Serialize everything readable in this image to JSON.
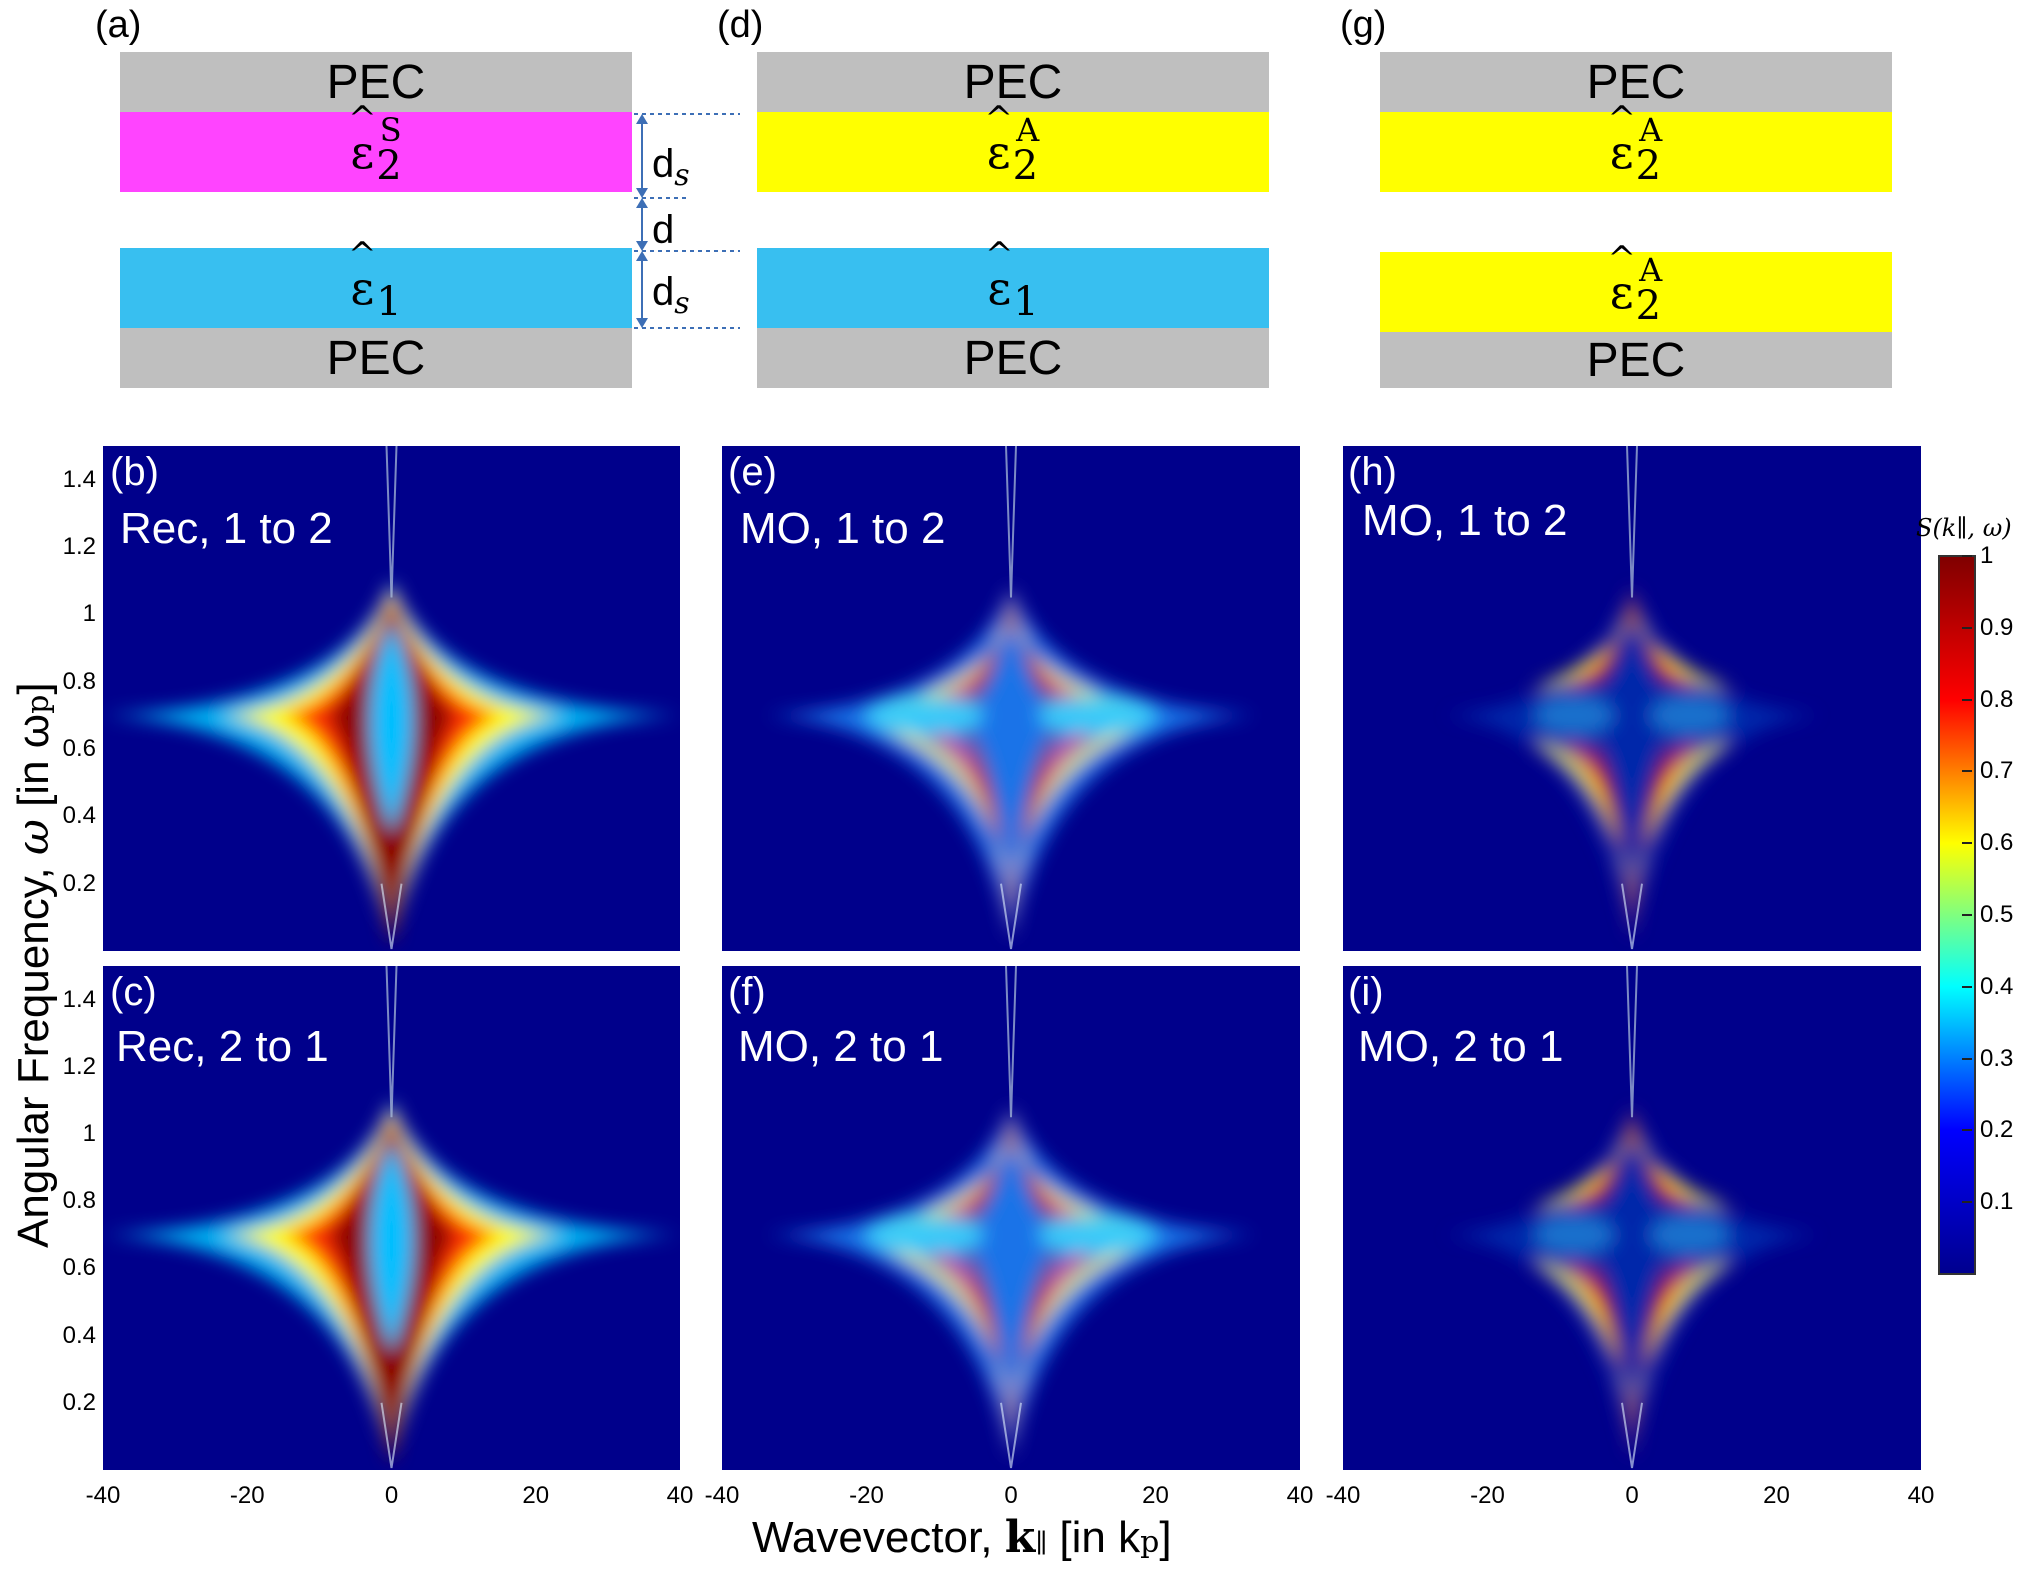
{
  "schematics": [
    {
      "id": "a",
      "label": "(a)",
      "top": "PEC",
      "bottom": "PEC",
      "upper_eps": "ε",
      "upper_sub": "2",
      "upper_sup": "S",
      "lower_eps": "ε",
      "lower_sub": "1",
      "upper_color": "#ff44ff",
      "lower_color": "#38bff0"
    },
    {
      "id": "d",
      "label": "(d)",
      "top": "PEC",
      "bottom": "PEC",
      "upper_eps": "ε",
      "upper_sub": "2",
      "upper_sup": "A",
      "lower_eps": "ε",
      "lower_sub": "1",
      "upper_color": "#ffff00",
      "lower_color": "#38bff0"
    },
    {
      "id": "g",
      "label": "(g)",
      "top": "PEC",
      "bottom": "PEC",
      "upper_eps": "ε",
      "upper_sub": "2",
      "upper_sup": "A",
      "lower_eps": "ε",
      "lower_sub": "2",
      "lower_sup": "A",
      "upper_color": "#ffff00",
      "lower_color": "#ffff00"
    }
  ],
  "dimensions": {
    "ds_top": "d",
    "ds_top_sub": "s",
    "gap": "d",
    "ds_bottom": "d",
    "ds_bottom_sub": "s"
  },
  "panels": [
    {
      "tag": "(b)",
      "title": "Rec, 1 to 2"
    },
    {
      "tag": "(e)",
      "title": "MO, 1 to 2"
    },
    {
      "tag": "(h)",
      "title": "MO, 1 to 2"
    },
    {
      "tag": "(c)",
      "title": "Rec, 2 to 1"
    },
    {
      "tag": "(f)",
      "title": "MO, 2 to 1"
    },
    {
      "tag": "(i)",
      "title": "MO, 2 to 1"
    }
  ],
  "axes": {
    "ylabel_prefix": "Angular Frequency, ",
    "ylabel_sym": "ω",
    "ylabel_unit": " [in ω",
    "ylabel_unit_sub": "p",
    "ylabel_close": "]",
    "xlabel_prefix": "Wavevector, ",
    "xlabel_sym": "k",
    "xlabel_sym_sub": "∥",
    "xlabel_unit": " [in k",
    "xlabel_unit_sub": "p",
    "xlabel_close": "]",
    "yticks": [
      "1.4",
      "1.2",
      "1",
      "0.8",
      "0.6",
      "0.4",
      "0.2"
    ],
    "xticks": [
      "-40",
      "-20",
      "0",
      "20",
      "40"
    ]
  },
  "colorbar": {
    "label": "S(k∥, ω)",
    "ticks": [
      "1",
      "0.9",
      "0.8",
      "0.7",
      "0.6",
      "0.5",
      "0.4",
      "0.3",
      "0.2",
      "0.1"
    ],
    "colors": [
      "#00008f",
      "#0000ff",
      "#00ffff",
      "#ffff00",
      "#ff0000",
      "#800000"
    ]
  },
  "chart_data": [
    {
      "type": "heatmap",
      "panel": "b",
      "title": "Rec, 1 to 2",
      "xlabel": "Wavevector, k∥ [in kp]",
      "ylabel": "Angular Frequency, ω [in ωp]",
      "xlim": [
        -40,
        40
      ],
      "ylim": [
        0,
        1.5
      ],
      "zlim": [
        0,
        1
      ],
      "branches": "single symmetric pair, peak near ω=0.7, |k| up to ~35"
    },
    {
      "type": "heatmap",
      "panel": "e",
      "title": "MO, 1 to 2",
      "xlim": [
        -40,
        40
      ],
      "ylim": [
        0,
        1.5
      ],
      "zlim": [
        0,
        1
      ],
      "branches": "split upper/lower branches around ω=0.7"
    },
    {
      "type": "heatmap",
      "panel": "h",
      "title": "MO, 1 to 2",
      "xlim": [
        -40,
        40
      ],
      "ylim": [
        0,
        1.5
      ],
      "zlim": [
        0,
        1
      ],
      "branches": "upper branch near ω=0.8, lower near ω=0.6, gap between"
    },
    {
      "type": "heatmap",
      "panel": "c",
      "title": "Rec, 2 to 1",
      "xlim": [
        -40,
        40
      ],
      "ylim": [
        0,
        1.5
      ],
      "zlim": [
        0,
        1
      ]
    },
    {
      "type": "heatmap",
      "panel": "f",
      "title": "MO, 2 to 1",
      "xlim": [
        -40,
        40
      ],
      "ylim": [
        0,
        1.5
      ],
      "zlim": [
        0,
        1
      ]
    },
    {
      "type": "heatmap",
      "panel": "i",
      "title": "MO, 2 to 1",
      "xlim": [
        -40,
        40
      ],
      "ylim": [
        0,
        1.5
      ],
      "zlim": [
        0,
        1
      ]
    }
  ]
}
